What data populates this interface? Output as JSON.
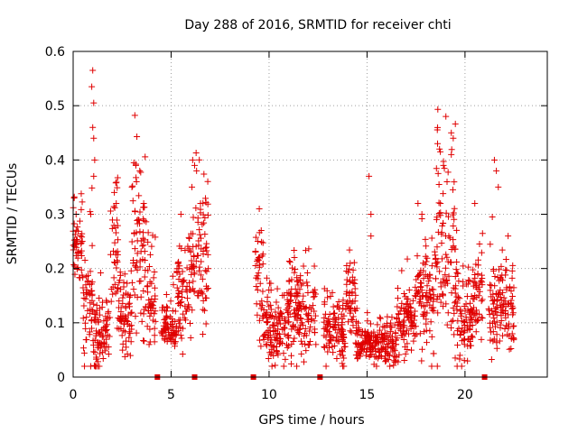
{
  "chart_data": {
    "type": "scatter",
    "title": "Day 288 of 2016, SRMTID for receiver chti",
    "xlabel": "GPS time / hours",
    "ylabel": "SRMTID / TECUs",
    "xlim": [
      0,
      24.2
    ],
    "ylim": [
      0,
      0.6
    ],
    "xticks": [
      0,
      5,
      10,
      15,
      20
    ],
    "xtick_labels": [
      "0",
      "5",
      "10",
      "15",
      "20"
    ],
    "yticks": [
      0,
      0.1,
      0.2,
      0.3,
      0.4,
      0.5,
      0.6
    ],
    "ytick_labels": [
      "0",
      "0.1",
      "0.2",
      "0.3",
      "0.4",
      "0.5",
      "0.6"
    ],
    "grid": true,
    "marker": "plus",
    "marker_color": "#e00000",
    "data_gaps_hours": [
      4.3,
      6.2,
      9.2,
      12.6,
      21.0
    ],
    "activity_profile": [
      {
        "start": 0.0,
        "end": 0.5,
        "center": 0.23,
        "spread": 0.04
      },
      {
        "start": 0.5,
        "end": 1.0,
        "center": 0.14,
        "spread": 0.06
      },
      {
        "start": 1.0,
        "end": 1.9,
        "center": 0.08,
        "spread": 0.03
      },
      {
        "start": 1.9,
        "end": 2.3,
        "center": 0.24,
        "spread": 0.07
      },
      {
        "start": 2.3,
        "end": 3.0,
        "center": 0.11,
        "spread": 0.04
      },
      {
        "start": 3.0,
        "end": 3.7,
        "center": 0.22,
        "spread": 0.08
      },
      {
        "start": 3.7,
        "end": 4.2,
        "center": 0.14,
        "spread": 0.05
      },
      {
        "start": 4.5,
        "end": 5.3,
        "center": 0.09,
        "spread": 0.02
      },
      {
        "start": 5.3,
        "end": 6.0,
        "center": 0.16,
        "spread": 0.05
      },
      {
        "start": 6.0,
        "end": 6.9,
        "center": 0.21,
        "spread": 0.06
      },
      {
        "start": 9.3,
        "end": 9.7,
        "center": 0.17,
        "spread": 0.06
      },
      {
        "start": 9.7,
        "end": 11.0,
        "center": 0.09,
        "spread": 0.03
      },
      {
        "start": 11.0,
        "end": 12.4,
        "center": 0.12,
        "spread": 0.04
      },
      {
        "start": 12.8,
        "end": 13.9,
        "center": 0.08,
        "spread": 0.03
      },
      {
        "start": 13.9,
        "end": 14.5,
        "center": 0.13,
        "spread": 0.04
      },
      {
        "start": 14.5,
        "end": 16.5,
        "center": 0.06,
        "spread": 0.02
      },
      {
        "start": 16.5,
        "end": 17.5,
        "center": 0.1,
        "spread": 0.03
      },
      {
        "start": 17.5,
        "end": 18.4,
        "center": 0.14,
        "spread": 0.05
      },
      {
        "start": 18.4,
        "end": 19.6,
        "center": 0.22,
        "spread": 0.08
      },
      {
        "start": 19.6,
        "end": 20.4,
        "center": 0.1,
        "spread": 0.03
      },
      {
        "start": 20.4,
        "end": 20.9,
        "center": 0.15,
        "spread": 0.05
      },
      {
        "start": 21.2,
        "end": 22.5,
        "center": 0.13,
        "spread": 0.04
      }
    ],
    "spikes": [
      {
        "x": 0.05,
        "y": 0.33
      },
      {
        "x": 0.15,
        "y": 0.3
      },
      {
        "x": 1.0,
        "y": 0.565
      },
      {
        "x": 0.95,
        "y": 0.535
      },
      {
        "x": 1.05,
        "y": 0.505
      },
      {
        "x": 1.0,
        "y": 0.46
      },
      {
        "x": 1.05,
        "y": 0.44
      },
      {
        "x": 1.1,
        "y": 0.4
      },
      {
        "x": 1.05,
        "y": 0.37
      },
      {
        "x": 0.9,
        "y": 0.3
      },
      {
        "x": 2.1,
        "y": 0.34
      },
      {
        "x": 2.2,
        "y": 0.32
      },
      {
        "x": 3.1,
        "y": 0.395
      },
      {
        "x": 3.2,
        "y": 0.39
      },
      {
        "x": 3.4,
        "y": 0.38
      },
      {
        "x": 3.0,
        "y": 0.35
      },
      {
        "x": 3.6,
        "y": 0.32
      },
      {
        "x": 6.1,
        "y": 0.4
      },
      {
        "x": 6.2,
        "y": 0.39
      },
      {
        "x": 6.3,
        "y": 0.38
      },
      {
        "x": 6.5,
        "y": 0.32
      },
      {
        "x": 5.5,
        "y": 0.3
      },
      {
        "x": 9.5,
        "y": 0.31
      },
      {
        "x": 9.6,
        "y": 0.27
      },
      {
        "x": 15.1,
        "y": 0.37
      },
      {
        "x": 15.2,
        "y": 0.3
      },
      {
        "x": 15.2,
        "y": 0.26
      },
      {
        "x": 17.6,
        "y": 0.32
      },
      {
        "x": 17.8,
        "y": 0.3
      },
      {
        "x": 18.6,
        "y": 0.43
      },
      {
        "x": 18.7,
        "y": 0.42
      },
      {
        "x": 18.9,
        "y": 0.39
      },
      {
        "x": 19.3,
        "y": 0.45
      },
      {
        "x": 19.4,
        "y": 0.44
      },
      {
        "x": 19.3,
        "y": 0.41
      },
      {
        "x": 20.5,
        "y": 0.32
      },
      {
        "x": 21.5,
        "y": 0.4
      },
      {
        "x": 21.6,
        "y": 0.38
      },
      {
        "x": 21.7,
        "y": 0.35
      },
      {
        "x": 22.2,
        "y": 0.26
      }
    ]
  }
}
